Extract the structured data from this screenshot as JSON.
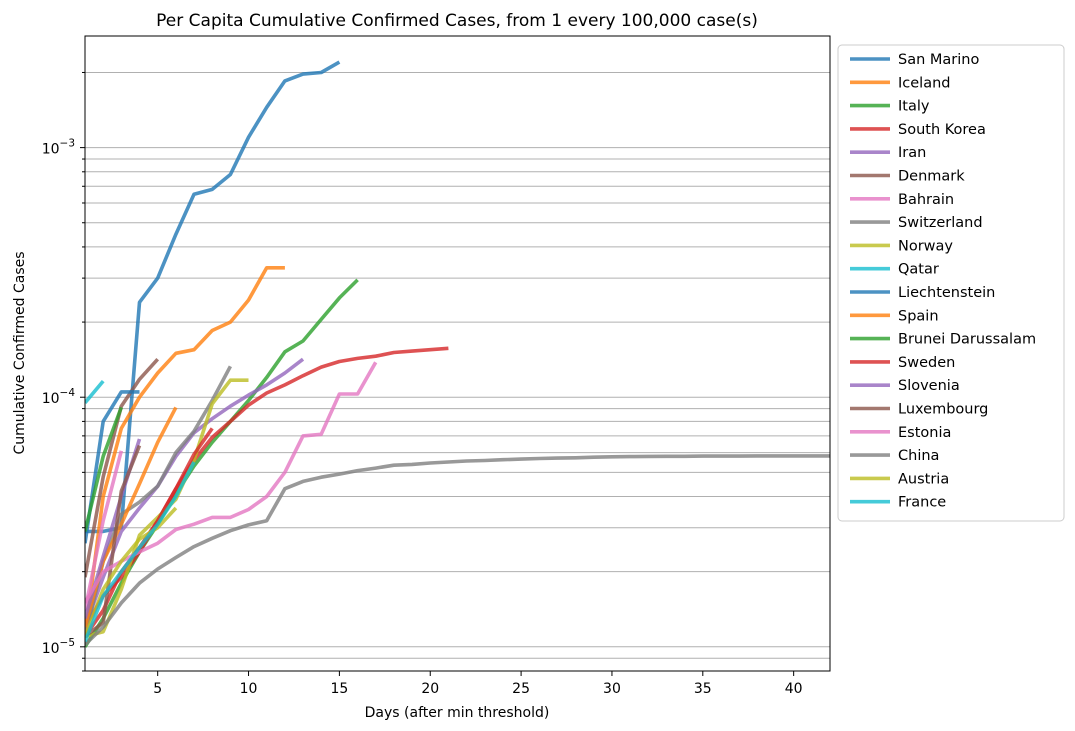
{
  "chart_data": {
    "type": "line",
    "title": "Per Capita Cumulative Confirmed Cases, from 1 every 100,000 case(s)",
    "xlabel": "Days (after min threshold)",
    "ylabel": "Cumulative Confirmed Cases",
    "x_range": [
      1,
      42
    ],
    "y_range": [
      8e-06,
      0.0028
    ],
    "y_scale": "log",
    "x_ticks": [
      5,
      10,
      15,
      20,
      25,
      30,
      35,
      40
    ],
    "y_ticks": [
      {
        "value": 1e-05,
        "base": "10",
        "exp": "−5"
      },
      {
        "value": 0.0001,
        "base": "10",
        "exp": "−4"
      },
      {
        "value": 0.001,
        "base": "10",
        "exp": "−3"
      }
    ],
    "grid": "horizontal major and minor",
    "legend_position": "outside-right",
    "series": [
      {
        "name": "San Marino",
        "color": "#1f77b4",
        "x": [
          1,
          2,
          3,
          4,
          5,
          6,
          7,
          8,
          9,
          10,
          11,
          12,
          13,
          14,
          15
        ],
        "y": [
          2.9e-05,
          2.9e-05,
          3e-05,
          0.00024,
          0.0003,
          0.00045,
          0.00065,
          0.00068,
          0.00078,
          0.0011,
          0.00145,
          0.00185,
          0.00197,
          0.002,
          0.0022
        ]
      },
      {
        "name": "Iceland",
        "color": "#ff7f0e",
        "x": [
          1,
          2,
          3,
          4,
          5,
          6,
          7,
          8,
          9,
          10,
          11,
          12
        ],
        "y": [
          1.1e-05,
          4e-05,
          7.5e-05,
          0.0001,
          0.000125,
          0.00015,
          0.000155,
          0.000185,
          0.0002,
          0.000245,
          0.00033,
          0.00033
        ]
      },
      {
        "name": "Italy",
        "color": "#2ca02c",
        "x": [
          1,
          2,
          3,
          4,
          5,
          6,
          7,
          8,
          9,
          10,
          11,
          12,
          13,
          14,
          15,
          16
        ],
        "y": [
          1e-05,
          1.3e-05,
          1.8e-05,
          2.4e-05,
          3.1e-05,
          4.1e-05,
          5.3e-05,
          6.6e-05,
          8e-05,
          9.7e-05,
          0.00012,
          0.000152,
          0.000168,
          0.000205,
          0.00025,
          0.000295
        ]
      },
      {
        "name": "South Korea",
        "color": "#d62728",
        "x": [
          1,
          2,
          3,
          4,
          5,
          6,
          7,
          8,
          9,
          10,
          11,
          12,
          13,
          14,
          15,
          16,
          17,
          18,
          19,
          20,
          21
        ],
        "y": [
          1.2e-05,
          1.6e-05,
          1.9e-05,
          2.4e-05,
          3.2e-05,
          4.3e-05,
          5.6e-05,
          6.9e-05,
          8e-05,
          9.3e-05,
          0.000104,
          0.000112,
          0.000122,
          0.000132,
          0.000139,
          0.000143,
          0.000146,
          0.000151,
          0.000153,
          0.000155,
          0.000157
        ]
      },
      {
        "name": "Iran",
        "color": "#9467bd",
        "x": [
          1,
          2,
          3,
          4,
          5,
          6,
          7,
          8,
          9,
          10,
          11,
          12,
          13
        ],
        "y": [
          1.2e-05,
          1.9e-05,
          2.9e-05,
          3.6e-05,
          4.4e-05,
          5.8e-05,
          7.2e-05,
          8.2e-05,
          9.2e-05,
          0.000102,
          0.000112,
          0.000125,
          0.000142
        ]
      },
      {
        "name": "Denmark",
        "color": "#8c564b",
        "x": [
          1,
          2,
          3,
          4,
          5
        ],
        "y": [
          1.9e-05,
          4.8e-05,
          9.2e-05,
          0.000118,
          0.000142
        ]
      },
      {
        "name": "Bahrain",
        "color": "#e377c2",
        "x": [
          1,
          2,
          3
        ],
        "y": [
          1.4e-05,
          3.2e-05,
          6.1e-05
        ]
      },
      {
        "name": "Switzerland",
        "color": "#7f7f7f",
        "x": [
          1,
          2,
          3,
          4,
          5,
          6,
          7,
          8,
          9
        ],
        "y": [
          1.1e-05,
          2.2e-05,
          3.4e-05,
          3.8e-05,
          4.4e-05,
          6e-05,
          7.3e-05,
          9.7e-05,
          0.000133
        ]
      },
      {
        "name": "Norway",
        "color": "#bcbd22",
        "x": [
          1,
          2,
          3,
          4,
          5,
          6,
          7,
          8,
          9,
          10
        ],
        "y": [
          1.1e-05,
          1.15e-05,
          1.7e-05,
          2.8e-05,
          3.3e-05,
          3.9e-05,
          5.6e-05,
          9.4e-05,
          0.000117,
          0.000117
        ]
      },
      {
        "name": "Qatar",
        "color": "#17becf",
        "x": [
          1,
          2
        ],
        "y": [
          9.5e-05,
          0.000116
        ]
      },
      {
        "name": "Liechtenstein",
        "color": "#1f77b4",
        "x": [
          1,
          2,
          3,
          4
        ],
        "y": [
          2.6e-05,
          8e-05,
          0.000105,
          0.000105
        ]
      },
      {
        "name": "Spain",
        "color": "#ff7f0e",
        "x": [
          1,
          2,
          3,
          4,
          5,
          6
        ],
        "y": [
          1.2e-05,
          2.2e-05,
          3.1e-05,
          4.5e-05,
          6.6e-05,
          9.1e-05
        ]
      },
      {
        "name": "Brunei Darussalam",
        "color": "#2ca02c",
        "x": [
          1,
          2,
          3
        ],
        "y": [
          2.9e-05,
          5.8e-05,
          9.1e-05
        ]
      },
      {
        "name": "Sweden",
        "color": "#d62728",
        "x": [
          1,
          2,
          3,
          4,
          5,
          6,
          7,
          8
        ],
        "y": [
          1.1e-05,
          1.4e-05,
          2e-05,
          2.5e-05,
          3.2e-05,
          4.3e-05,
          5.9e-05,
          7.5e-05
        ]
      },
      {
        "name": "Slovenia",
        "color": "#9467bd",
        "x": [
          1,
          2,
          3,
          4
        ],
        "y": [
          1.3e-05,
          2.3e-05,
          4e-05,
          6.8e-05
        ]
      },
      {
        "name": "Luxembourg",
        "color": "#8c564b",
        "x": [
          1,
          2,
          3,
          4
        ],
        "y": [
          1.1e-05,
          1.25e-05,
          4.2e-05,
          6.4e-05
        ]
      },
      {
        "name": "Estonia",
        "color": "#e377c2",
        "x": [
          1,
          2,
          3,
          4,
          5,
          6,
          7,
          8,
          9,
          10,
          11,
          12,
          13,
          14,
          15,
          16,
          17
        ],
        "y": [
          1.5e-05,
          2e-05,
          2.2e-05,
          2.4e-05,
          2.6e-05,
          2.95e-05,
          3.1e-05,
          3.3e-05,
          3.3e-05,
          3.55e-05,
          4e-05,
          5e-05,
          7e-05,
          7.1e-05,
          0.000103,
          0.000103,
          0.000138
        ]
      },
      {
        "name": "China",
        "color": "#7f7f7f",
        "x": [
          1,
          2,
          3,
          4,
          5,
          6,
          7,
          8,
          9,
          10,
          11,
          12,
          13,
          14,
          15,
          16,
          17,
          18,
          19,
          20,
          21,
          22,
          23,
          24,
          25,
          26,
          27,
          28,
          29,
          30,
          31,
          32,
          33,
          34,
          35,
          36,
          37,
          38,
          39,
          40,
          41,
          42
        ],
        "y": [
          1.02e-05,
          1.2e-05,
          1.5e-05,
          1.8e-05,
          2.05e-05,
          2.28e-05,
          2.52e-05,
          2.72e-05,
          2.92e-05,
          3.08e-05,
          3.2e-05,
          4.3e-05,
          4.6e-05,
          4.78e-05,
          4.92e-05,
          5.08e-05,
          5.2e-05,
          5.34e-05,
          5.38e-05,
          5.45e-05,
          5.5e-05,
          5.55e-05,
          5.58e-05,
          5.62e-05,
          5.65e-05,
          5.68e-05,
          5.7e-05,
          5.72e-05,
          5.75e-05,
          5.77e-05,
          5.78e-05,
          5.79e-05,
          5.8e-05,
          5.8e-05,
          5.81e-05,
          5.81e-05,
          5.81e-05,
          5.82e-05,
          5.82e-05,
          5.82e-05,
          5.82e-05,
          5.82e-05
        ]
      },
      {
        "name": "Austria",
        "color": "#bcbd22",
        "x": [
          1,
          2,
          3,
          4,
          5,
          6
        ],
        "y": [
          1.1e-05,
          1.7e-05,
          2.2e-05,
          2.7e-05,
          3e-05,
          3.6e-05
        ]
      },
      {
        "name": "France",
        "color": "#17becf",
        "x": [
          1,
          2,
          3,
          4,
          5,
          6,
          7
        ],
        "y": [
          1.05e-05,
          1.6e-05,
          2e-05,
          2.5e-05,
          3.1e-05,
          4e-05,
          5.5e-05
        ]
      }
    ]
  }
}
